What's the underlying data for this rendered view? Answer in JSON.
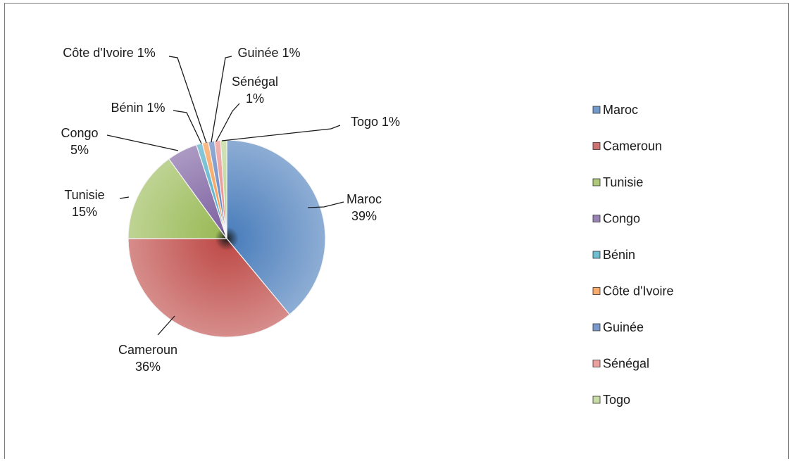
{
  "chart_data": {
    "type": "pie",
    "slices": [
      {
        "name": "Maroc",
        "value": 39,
        "label": [
          "Maroc",
          "39%"
        ],
        "color": "#4f81bd"
      },
      {
        "name": "Cameroun",
        "value": 36,
        "label": [
          "Cameroun",
          "36%"
        ],
        "color": "#c0504d"
      },
      {
        "name": "Tunisie",
        "value": 15,
        "label": [
          "Tunisie",
          "15%"
        ],
        "color": "#9bbb59"
      },
      {
        "name": "Congo",
        "value": 5,
        "label": [
          "Congo",
          "5%"
        ],
        "color": "#8064a2"
      },
      {
        "name": "Bénin",
        "value": 1,
        "label": [
          "Bénin 1%"
        ],
        "color": "#4bacc6"
      },
      {
        "name": "Côte d'Ivoire",
        "value": 1,
        "label": [
          "Côte d'Ivoire 1%"
        ],
        "color": "#f79646"
      },
      {
        "name": "Guinée",
        "value": 1,
        "label": [
          "Guinée 1%"
        ],
        "color": "#5b7fbf"
      },
      {
        "name": "Sénégal",
        "value": 1,
        "label": [
          "Sénégal",
          "1%"
        ],
        "color": "#e88a87"
      },
      {
        "name": "Togo",
        "value": 1,
        "label": [
          "Togo 1%"
        ],
        "color": "#b9d48f"
      }
    ],
    "legend": [
      "Maroc",
      "Cameroun",
      "Tunisie",
      "Congo",
      "Bénin",
      "Côte d'Ivoire",
      "Guinée",
      "Sénégal",
      "Togo"
    ],
    "legend_position": "right"
  }
}
